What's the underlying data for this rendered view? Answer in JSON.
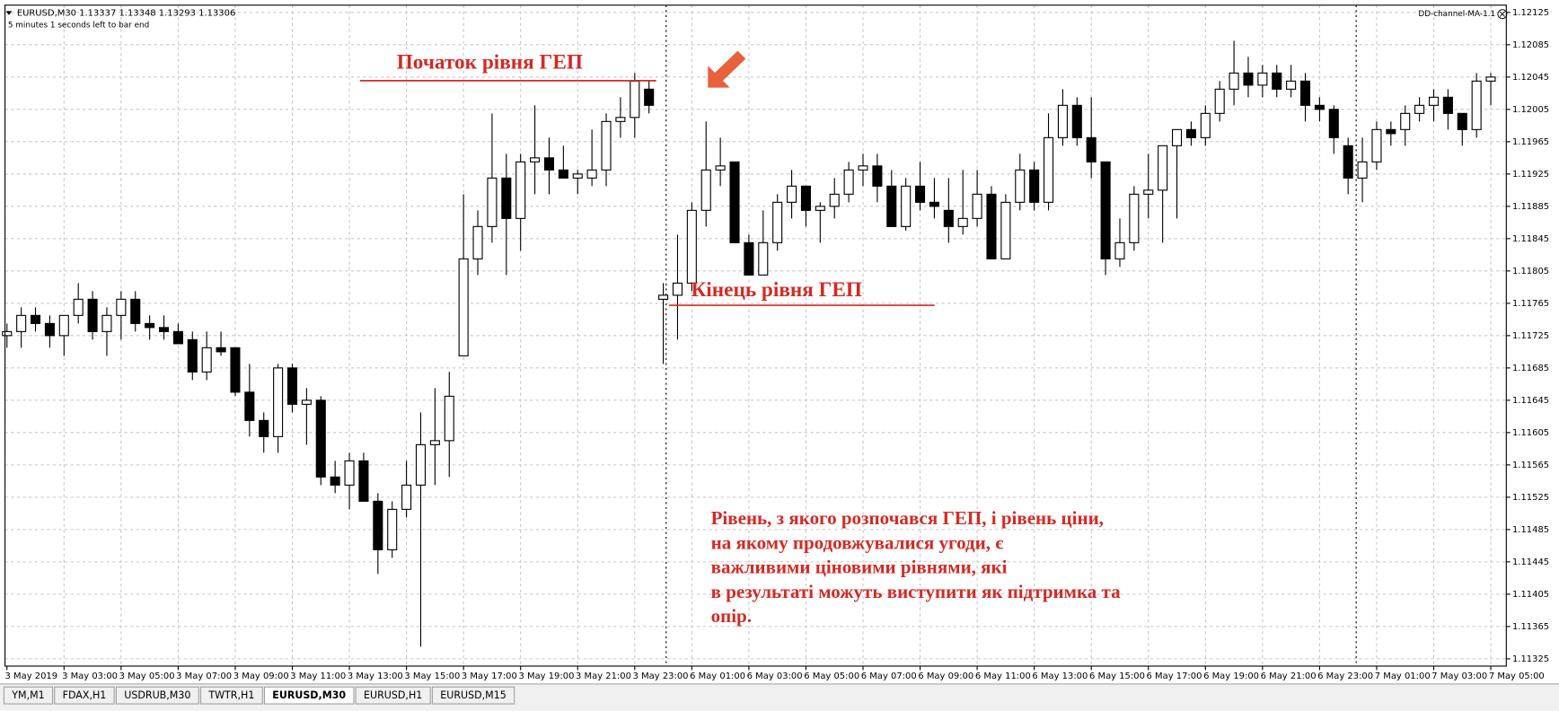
{
  "chart_data": {
    "type": "candlestick",
    "header": "EURUSD,M30  1.13337 1.13348 1.13293 1.13306",
    "subheader": "5 minutes 1 seconds left to bar end",
    "indicator": "DD-channel-MA-1.1",
    "categories": [
      "3 May 2019",
      null,
      null,
      null,
      "3 May 03:00",
      null,
      null,
      null,
      "3 May 05:00",
      null,
      null,
      null,
      "3 May 07:00",
      null,
      null,
      null,
      "3 May 09:00",
      null,
      null,
      null,
      "3 May 11:00",
      null,
      null,
      null,
      "3 May 13:00",
      null,
      null,
      null,
      "3 May 15:00",
      null,
      null,
      null,
      "3 May 17:00",
      null,
      null,
      null,
      "3 May 19:00",
      null,
      null,
      null,
      "3 May 21:00",
      null,
      null,
      null,
      "3 May 23:00",
      null,
      null,
      null,
      "6 May 01:00",
      null,
      null,
      null,
      "6 May 03:00",
      null,
      null,
      null,
      "6 May 05:00",
      null,
      null,
      null,
      "6 May 07:00",
      null,
      null,
      null,
      "6 May 09:00",
      null,
      null,
      null,
      "6 May 11:00",
      null,
      null,
      null,
      "6 May 13:00",
      null,
      null,
      null,
      "6 May 15:00",
      null,
      null,
      null,
      "6 May 17:00",
      null,
      null,
      null,
      "6 May 19:00",
      null,
      null,
      null,
      "6 May 21:00",
      null,
      null,
      null,
      "6 May 23:00",
      null,
      null,
      null,
      "7 May 01:00",
      null,
      null,
      null,
      "7 May 03:00",
      null,
      null,
      null,
      "7 May 05:00"
    ],
    "open": [
      1.11725,
      1.1173,
      1.1175,
      1.1174,
      1.11725,
      1.1175,
      1.1177,
      1.1173,
      1.1175,
      1.1177,
      1.1174,
      1.11735,
      1.1173,
      1.1172,
      1.1168,
      1.1171,
      1.1171,
      1.11655,
      1.1162,
      1.116,
      1.11685,
      1.1164,
      1.11645,
      1.1155,
      1.1154,
      1.1157,
      1.1152,
      1.1146,
      1.1151,
      1.1154,
      1.1159,
      1.11595,
      1.117,
      1.1182,
      1.1186,
      1.1192,
      1.1187,
      1.1194,
      1.11945,
      1.1193,
      1.1192,
      1.1192,
      1.1193,
      1.1199,
      1.11995,
      1.1203,
      1.1177,
      1.11775,
      1.1179,
      1.1188,
      1.1193,
      1.1194,
      1.1184,
      1.118,
      1.1184,
      1.1189,
      1.1191,
      1.1188,
      1.11885,
      1.119,
      1.1193,
      1.11935,
      1.1191,
      1.1186,
      1.1191,
      1.1189,
      1.1188,
      1.1186,
      1.1187,
      1.119,
      1.1182,
      1.1189,
      1.1193,
      1.1189,
      1.1197,
      1.1201,
      1.1197,
      1.1194,
      1.1182,
      1.1184,
      1.119,
      1.11905,
      1.1196,
      1.1198,
      1.1197,
      1.12,
      1.1203,
      1.1205,
      1.12035,
      1.1205,
      1.1203,
      1.1204,
      1.1201,
      1.12005,
      1.1196,
      1.1192,
      1.1194,
      1.1198,
      1.1198,
      1.12,
      1.1201,
      1.1202,
      1.12,
      1.1198,
      1.1204
    ],
    "high": [
      1.1174,
      1.1176,
      1.1176,
      1.1175,
      1.1175,
      1.1179,
      1.1178,
      1.1176,
      1.1178,
      1.1178,
      1.1175,
      1.1175,
      1.1174,
      1.1173,
      1.1173,
      1.1173,
      1.1171,
      1.1169,
      1.1163,
      1.1169,
      1.1169,
      1.1166,
      1.1165,
      1.1157,
      1.1158,
      1.1158,
      1.1153,
      1.1152,
      1.1157,
      1.1163,
      1.1166,
      1.1168,
      1.119,
      1.1188,
      1.12,
      1.1195,
      1.1195,
      1.1201,
      1.1197,
      1.1196,
      1.1193,
      1.1198,
      1.12,
      1.1202,
      1.1205,
      1.1204,
      1.1179,
      1.1185,
      1.1189,
      1.1199,
      1.1197,
      1.1194,
      1.1185,
      1.1188,
      1.119,
      1.1193,
      1.1191,
      1.1189,
      1.1192,
      1.1194,
      1.1195,
      1.1195,
      1.1193,
      1.1192,
      1.1194,
      1.1192,
      1.1192,
      1.1193,
      1.1193,
      1.1191,
      1.119,
      1.1195,
      1.1194,
      1.12,
      1.1203,
      1.1202,
      1.1202,
      1.1194,
      1.1187,
      1.1191,
      1.1195,
      1.1196,
      1.1198,
      1.1199,
      1.1201,
      1.1204,
      1.1209,
      1.1207,
      1.1206,
      1.1206,
      1.1206,
      1.1205,
      1.1202,
      1.1201,
      1.1197,
      1.1197,
      1.1199,
      1.1199,
      1.1201,
      1.1202,
      1.1203,
      1.1203,
      1.12,
      1.1205,
      1.1205
    ],
    "low": [
      1.1171,
      1.1171,
      1.1173,
      1.1171,
      1.117,
      1.1174,
      1.1172,
      1.117,
      1.1172,
      1.1173,
      1.1172,
      1.1172,
      1.11715,
      1.1167,
      1.1167,
      1.117,
      1.1165,
      1.116,
      1.1158,
      1.1158,
      1.1163,
      1.1159,
      1.1154,
      1.1153,
      1.1151,
      1.1152,
      1.1143,
      1.1145,
      1.115,
      1.1134,
      1.1154,
      1.1155,
      1.117,
      1.118,
      1.1184,
      1.118,
      1.1183,
      1.119,
      1.119,
      1.1192,
      1.119,
      1.1191,
      1.1191,
      1.1197,
      1.1197,
      1.12,
      1.1169,
      1.1172,
      1.1178,
      1.1186,
      1.1191,
      1.1184,
      1.118,
      1.118,
      1.1183,
      1.1187,
      1.1186,
      1.1184,
      1.1187,
      1.1189,
      1.1191,
      1.1189,
      1.1186,
      1.11855,
      1.1188,
      1.1187,
      1.1184,
      1.1185,
      1.1186,
      1.1182,
      1.1182,
      1.1188,
      1.1188,
      1.1188,
      1.1196,
      1.1196,
      1.1192,
      1.118,
      1.1181,
      1.1183,
      1.1187,
      1.1184,
      1.1187,
      1.1196,
      1.1196,
      1.1199,
      1.1201,
      1.1202,
      1.1202,
      1.1202,
      1.1202,
      1.1199,
      1.1199,
      1.1195,
      1.119,
      1.1189,
      1.1193,
      1.1196,
      1.1196,
      1.1199,
      1.1199,
      1.1198,
      1.1196,
      1.1197,
      1.1201
    ],
    "close": [
      1.1173,
      1.1175,
      1.1174,
      1.11725,
      1.1175,
      1.1177,
      1.1173,
      1.1175,
      1.1177,
      1.1174,
      1.11735,
      1.1173,
      1.11715,
      1.1168,
      1.1171,
      1.11705,
      1.11655,
      1.1162,
      1.116,
      1.11685,
      1.1164,
      1.11645,
      1.1155,
      1.1154,
      1.1157,
      1.1152,
      1.1146,
      1.1151,
      1.1154,
      1.1159,
      1.11595,
      1.1165,
      1.1182,
      1.1186,
      1.1192,
      1.1187,
      1.1194,
      1.11945,
      1.1193,
      1.1192,
      1.11925,
      1.1193,
      1.1199,
      1.11995,
      1.1204,
      1.1201,
      1.11775,
      1.1179,
      1.1188,
      1.1193,
      1.11935,
      1.1184,
      1.118,
      1.1184,
      1.1189,
      1.1191,
      1.1188,
      1.11885,
      1.119,
      1.1193,
      1.11935,
      1.1191,
      1.1186,
      1.1191,
      1.1189,
      1.11885,
      1.1186,
      1.1187,
      1.119,
      1.1182,
      1.1189,
      1.1193,
      1.1189,
      1.1197,
      1.1201,
      1.1197,
      1.1194,
      1.1182,
      1.1184,
      1.119,
      1.11905,
      1.1196,
      1.1198,
      1.1197,
      1.12,
      1.1203,
      1.1205,
      1.12035,
      1.1205,
      1.1203,
      1.1204,
      1.1201,
      1.12005,
      1.1197,
      1.1192,
      1.1194,
      1.1198,
      1.11975,
      1.12,
      1.1201,
      1.1202,
      1.12,
      1.1198,
      1.1204,
      1.12045
    ],
    "up_color": "#ffffff",
    "down_color": "#000000",
    "ylim": [
      1.11316,
      1.12134
    ],
    "yticks": [
      1.12125,
      1.12085,
      1.12045,
      1.12005,
      1.11965,
      1.11925,
      1.11885,
      1.11845,
      1.11805,
      1.11765,
      1.11725,
      1.11685,
      1.11645,
      1.11605,
      1.11565,
      1.11525,
      1.11485,
      1.11445,
      1.11405,
      1.11365,
      1.11325
    ],
    "grid": true,
    "annotations": {
      "gap_start": "Початок рівня ГЕП",
      "gap_end": "Кінець рівня ГЕП",
      "note": [
        "Рівень, з якого розпочався ГЕП, і рівень ціни,",
        "на якому продовжувалися угоди, є",
        "важливими ціновими рівнями, які",
        "в результаті можуть виступити як підтримка та",
        "опір."
      ]
    }
  },
  "tabs": [
    "YM,M1",
    "FDAX,H1",
    "USDRUB,M30",
    "TWTR,H1",
    "EURUSD,M30",
    "EURUSD,H1",
    "EURUSD,M15"
  ],
  "active_tab": 4
}
